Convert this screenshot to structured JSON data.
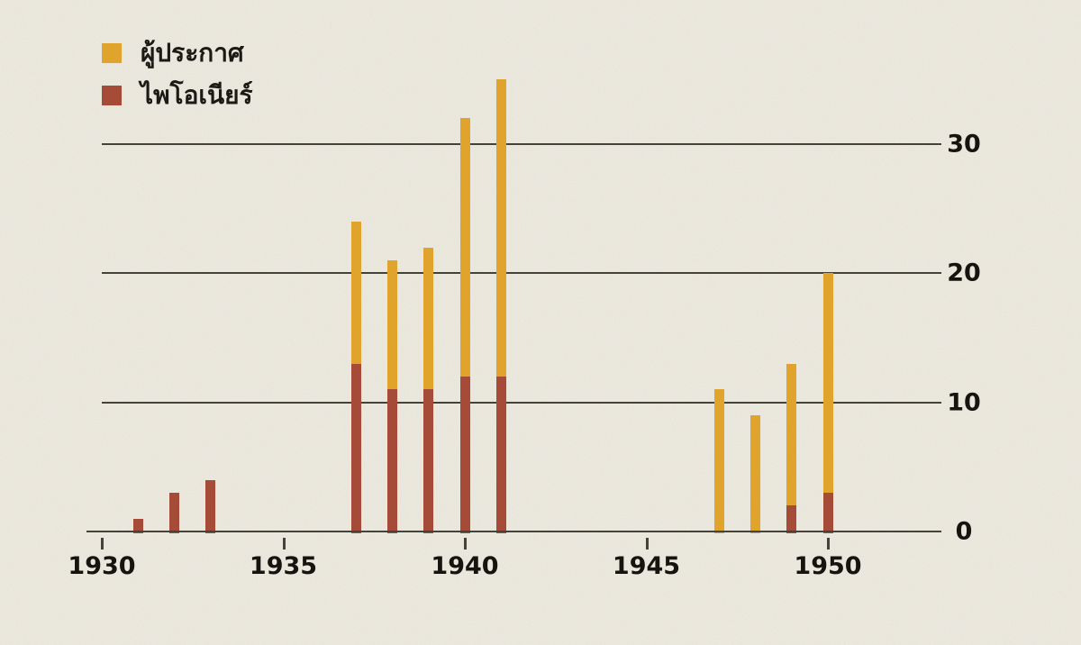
{
  "page": {
    "background_color": "#EDEAE0",
    "texture": "paper-grain"
  },
  "legend": {
    "position": "top-left",
    "items": [
      {
        "label": "ผู้ประกาศ",
        "color": "#E0A42C"
      },
      {
        "label": "ไพโอเนียร์",
        "color": "#A54B38"
      }
    ]
  },
  "chart_data": {
    "type": "bar",
    "stacked": true,
    "title": "",
    "xlabel": "",
    "ylabel": "",
    "x": [
      1931,
      1932,
      1933,
      1937,
      1938,
      1939,
      1940,
      1941,
      1947,
      1948,
      1949,
      1950
    ],
    "series": [
      {
        "name": "ผู้ประกาศ",
        "color": "#E0A42C",
        "role": "total-bar-height",
        "values": [
          1,
          3,
          4,
          24,
          21,
          22,
          32,
          35,
          11,
          9,
          13,
          20
        ]
      },
      {
        "name": "ไพโอเนียร์",
        "color": "#A54B38",
        "role": "bottom-segment-of-bar",
        "values": [
          1,
          3,
          4,
          13,
          11,
          11,
          12,
          12,
          0,
          0,
          2,
          3
        ]
      }
    ],
    "xticks": [
      1930,
      1935,
      1940,
      1945,
      1950
    ],
    "yticks": [
      0,
      10,
      20,
      30
    ],
    "ylim": [
      0,
      35
    ],
    "xlim": [
      1929.5,
      1953
    ],
    "grid": "horizontal",
    "y_axis_side": "right",
    "legend_position": "top-left",
    "axis_color": "#45423a",
    "label_color": "#16140f"
  }
}
